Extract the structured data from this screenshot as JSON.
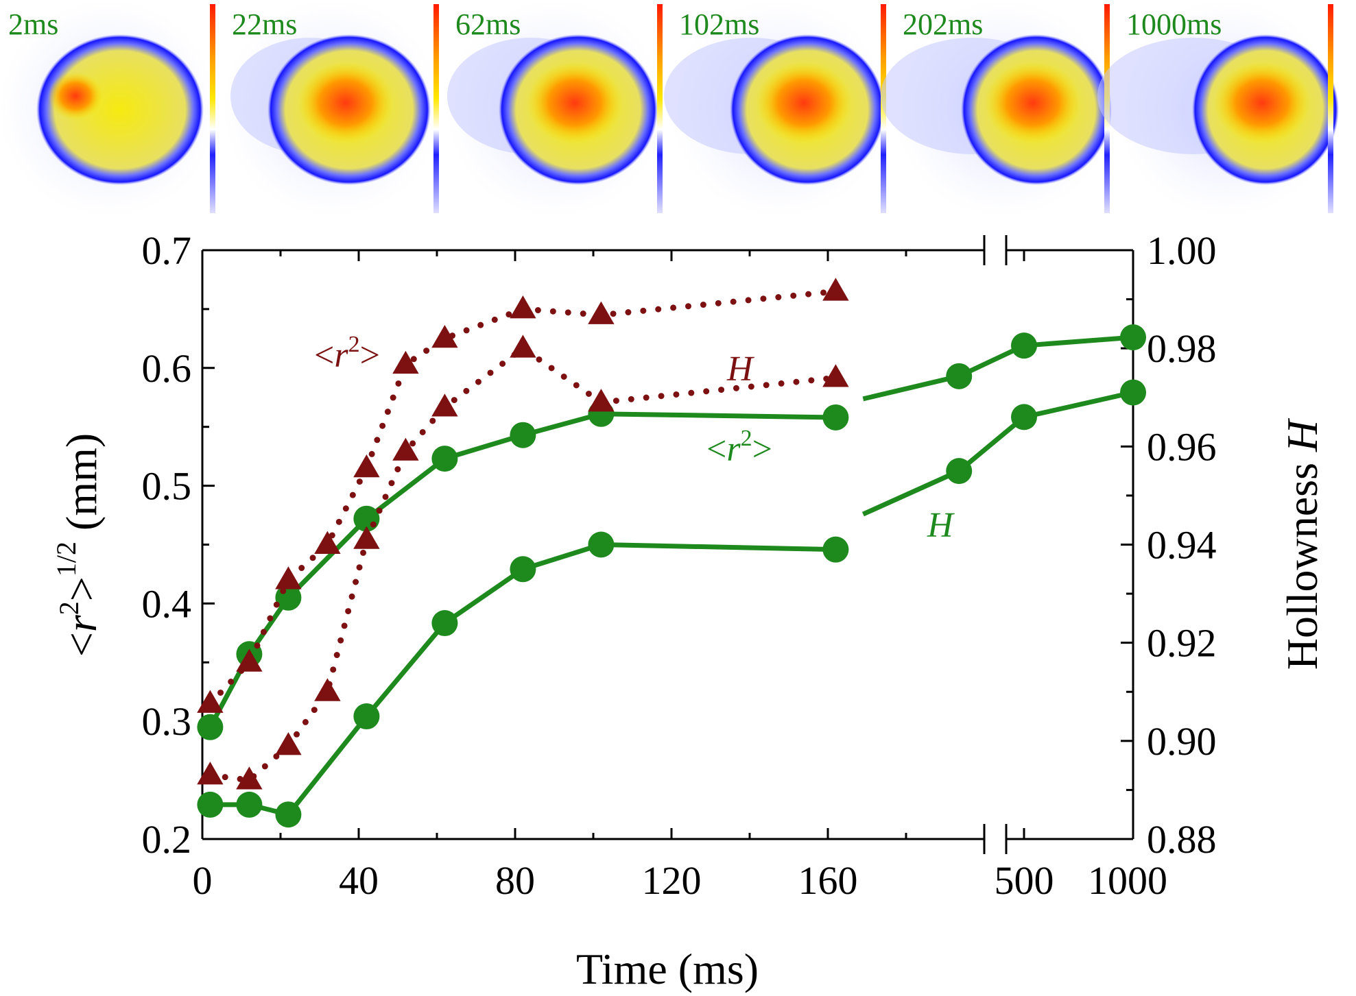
{
  "colors": {
    "green": "#1e8a1e",
    "dark_red": "#7d1010",
    "axis": "#000000",
    "blob_blue": "#1a1aff",
    "blob_yellow": "#f5e400",
    "blob_orange": "#ff5a10"
  },
  "frames": [
    {
      "label": "2ms"
    },
    {
      "label": "22ms"
    },
    {
      "label": "62ms"
    },
    {
      "label": "102ms"
    },
    {
      "label": "202ms"
    },
    {
      "label": "1000ms"
    }
  ],
  "chart_data": {
    "type": "line",
    "xlabel": "Time (ms)",
    "ylabel_left": {
      "base": "<r",
      "sup": "2",
      "close": ">",
      "sup2": "1/2",
      "unit": " (mm)"
    },
    "ylabel_right": {
      "text": "Hollowness ",
      "italic": "H"
    },
    "x_ticks_linear": [
      "0",
      "40",
      "80",
      "120",
      "160"
    ],
    "x_ticks_break": [
      "500",
      "1000"
    ],
    "x_segment1_range": [
      0,
      200
    ],
    "x_segment2_range": [
      400,
      1000
    ],
    "y_left_range": [
      0.2,
      0.7
    ],
    "y_left_ticks": [
      "0.2",
      "0.3",
      "0.4",
      "0.5",
      "0.6",
      "0.7"
    ],
    "y_right_range": [
      0.88,
      1.0
    ],
    "y_right_ticks": [
      "0.88",
      "0.90",
      "0.92",
      "0.94",
      "0.96",
      "0.98",
      "1.00"
    ],
    "series": [
      {
        "name": "green <r^2>",
        "axis": "left",
        "style": "solid-circle",
        "color": "green",
        "points": [
          [
            2,
            0.295
          ],
          [
            12,
            0.357
          ],
          [
            22,
            0.405
          ],
          [
            42,
            0.472
          ],
          [
            62,
            0.523
          ],
          [
            82,
            0.543
          ],
          [
            102,
            0.561
          ],
          [
            162,
            0.558
          ],
          [
            202,
            0.593
          ],
          [
            500,
            0.619
          ],
          [
            1000,
            0.626
          ]
        ]
      },
      {
        "name": "green H",
        "axis": "right",
        "style": "solid-circle",
        "color": "green",
        "points": [
          [
            2,
            0.887
          ],
          [
            12,
            0.887
          ],
          [
            22,
            0.885
          ],
          [
            42,
            0.905
          ],
          [
            62,
            0.924
          ],
          [
            82,
            0.935
          ],
          [
            102,
            0.94
          ],
          [
            162,
            0.939
          ],
          [
            202,
            0.955
          ],
          [
            500,
            0.966
          ],
          [
            1000,
            0.971
          ]
        ]
      },
      {
        "name": "red <r^2>",
        "axis": "left",
        "style": "dotted-triangle",
        "color": "dark_red",
        "points": [
          [
            2,
            0.315
          ],
          [
            12,
            0.35
          ],
          [
            22,
            0.42
          ],
          [
            32,
            0.45
          ],
          [
            42,
            0.515
          ],
          [
            52,
            0.603
          ],
          [
            62,
            0.625
          ],
          [
            82,
            0.65
          ],
          [
            102,
            0.645
          ],
          [
            162,
            0.665
          ]
        ]
      },
      {
        "name": "red H",
        "axis": "right",
        "style": "dotted-triangle",
        "color": "dark_red",
        "points": [
          [
            2,
            0.893
          ],
          [
            12,
            0.892
          ],
          [
            22,
            0.899
          ],
          [
            32,
            0.91
          ],
          [
            42,
            0.941
          ],
          [
            52,
            0.959
          ],
          [
            62,
            0.968
          ],
          [
            82,
            0.98
          ],
          [
            102,
            0.969
          ],
          [
            162,
            0.974
          ]
        ]
      }
    ],
    "annotations": {
      "red_r2": {
        "base": "<r",
        "sup": "2",
        "close": ">"
      },
      "red_H": "H",
      "green_r2": {
        "base": "<r",
        "sup": "2",
        "close": ">"
      },
      "green_H": "H"
    }
  }
}
